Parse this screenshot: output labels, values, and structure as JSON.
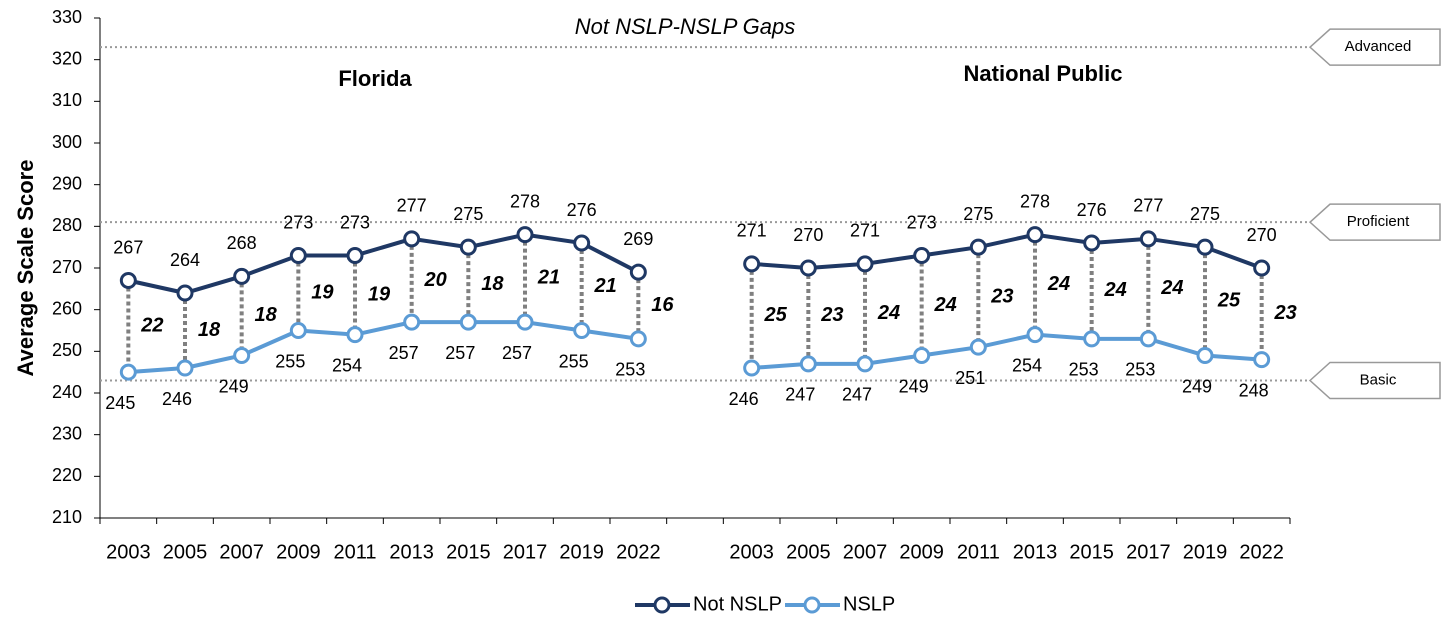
{
  "chart_data": {
    "type": "line",
    "subtitle": "Not NSLP-NSLP Gaps",
    "ylabel": "Average Scale Score",
    "ylim": [
      210,
      330
    ],
    "yticks": [
      210,
      220,
      230,
      240,
      250,
      260,
      270,
      280,
      290,
      300,
      310,
      320,
      330
    ],
    "reference_lines": [
      {
        "label": "Advanced",
        "value": 323
      },
      {
        "label": "Proficient",
        "value": 281
      },
      {
        "label": "Basic",
        "value": 243
      }
    ],
    "panels": [
      {
        "title": "Florida",
        "categories": [
          "2003",
          "2005",
          "2007",
          "2009",
          "2011",
          "2013",
          "2015",
          "2017",
          "2019",
          "2022"
        ],
        "series": [
          {
            "name": "Not NSLP",
            "color": "#1f3864",
            "values": [
              267,
              264,
              268,
              273,
              273,
              277,
              275,
              278,
              276,
              269
            ]
          },
          {
            "name": "NSLP",
            "color": "#5b9bd5",
            "values": [
              245,
              246,
              249,
              255,
              254,
              257,
              257,
              257,
              255,
              253
            ]
          }
        ],
        "gaps": [
          22,
          18,
          18,
          19,
          19,
          20,
          18,
          21,
          21,
          16
        ]
      },
      {
        "title": "National Public",
        "categories": [
          "2003",
          "2005",
          "2007",
          "2009",
          "2011",
          "2013",
          "2015",
          "2017",
          "2019",
          "2022"
        ],
        "series": [
          {
            "name": "Not NSLP",
            "color": "#1f3864",
            "values": [
              271,
              270,
              271,
              273,
              275,
              278,
              276,
              277,
              275,
              270
            ]
          },
          {
            "name": "NSLP",
            "color": "#5b9bd5",
            "values": [
              246,
              247,
              247,
              249,
              251,
              254,
              253,
              253,
              249,
              248
            ]
          }
        ],
        "gaps": [
          25,
          23,
          24,
          24,
          23,
          24,
          24,
          24,
          25,
          23
        ]
      }
    ]
  }
}
